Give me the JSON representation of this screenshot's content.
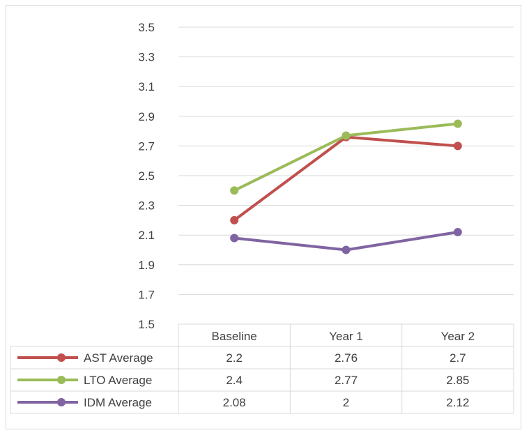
{
  "chart_data": {
    "type": "line",
    "categories": [
      "Baseline",
      "Year 1",
      "Year 2"
    ],
    "series": [
      {
        "name": "AST Average",
        "values": [
          2.2,
          2.76,
          2.7
        ],
        "color": "#c0504d"
      },
      {
        "name": "LTO Average",
        "values": [
          2.4,
          2.77,
          2.85
        ],
        "color": "#9bbb59"
      },
      {
        "name": "IDM Average",
        "values": [
          2.08,
          2,
          2.12
        ],
        "color": "#8064a2"
      }
    ],
    "ylim": [
      1.5,
      3.5
    ],
    "yticks": [
      "3.5",
      "3.3",
      "3.1",
      "2.9",
      "2.7",
      "2.5",
      "2.3",
      "2.1",
      "1.9",
      "1.7",
      "1.5"
    ],
    "ytick_values": [
      3.5,
      3.3,
      3.1,
      2.9,
      2.7,
      2.5,
      2.3,
      2.1,
      1.9,
      1.7,
      1.5
    ],
    "data_table": {
      "rows": [
        {
          "label": "AST Average",
          "cells": [
            "2.2",
            "2.76",
            "2.7"
          ]
        },
        {
          "label": "LTO Average",
          "cells": [
            "2.4",
            "2.77",
            "2.85"
          ]
        },
        {
          "label": "IDM Average",
          "cells": [
            "2.08",
            "2",
            "2.12"
          ]
        }
      ]
    },
    "grid": true,
    "legend": "data-table"
  }
}
